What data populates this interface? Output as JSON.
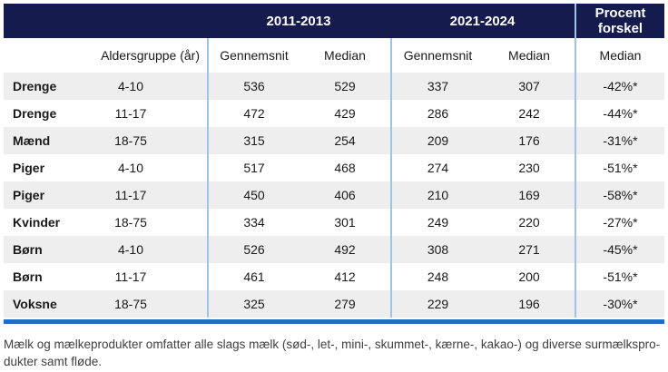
{
  "colors": {
    "navy": "#161b4e",
    "stripe": "#eeeeee",
    "separator": "#9dc3e6",
    "bottom_line": "#1e6fc0",
    "body_text": "#1a1a1a",
    "footnote_text": "#404040"
  },
  "table": {
    "group_headers": {
      "period1": "2011-2013",
      "period2": "2021-2024",
      "diff_line1": "Procent",
      "diff_line2": "forskel"
    },
    "subheader": {
      "age": "Aldersgruppe (år)",
      "avg1": "Gennemsnit",
      "med1": "Median",
      "avg2": "Gennemsnit",
      "med2": "Median",
      "diff": "Median"
    },
    "rows": [
      {
        "group": "Drenge",
        "age": "4-10",
        "avg1": "536",
        "med1": "529",
        "avg2": "337",
        "med2": "307",
        "diff": "-42%*"
      },
      {
        "group": "Drenge",
        "age": "11-17",
        "avg1": "472",
        "med1": "429",
        "avg2": "286",
        "med2": "242",
        "diff": "-44%*"
      },
      {
        "group": "Mænd",
        "age": "18-75",
        "avg1": "315",
        "med1": "254",
        "avg2": "209",
        "med2": "176",
        "diff": "-31%*"
      },
      {
        "group": "Piger",
        "age": "4-10",
        "avg1": "517",
        "med1": "468",
        "avg2": "274",
        "med2": "230",
        "diff": "-51%*"
      },
      {
        "group": "Piger",
        "age": "11-17",
        "avg1": "450",
        "med1": "406",
        "avg2": "210",
        "med2": "169",
        "diff": "-58%*"
      },
      {
        "group": "Kvinder",
        "age": "18-75",
        "avg1": "334",
        "med1": "301",
        "avg2": "249",
        "med2": "220",
        "diff": "-27%*"
      },
      {
        "group": "Børn",
        "age": "4-10",
        "avg1": "526",
        "med1": "492",
        "avg2": "308",
        "med2": "271",
        "diff": "-45%*"
      },
      {
        "group": "Børn",
        "age": "11-17",
        "avg1": "461",
        "med1": "412",
        "avg2": "248",
        "med2": "200",
        "diff": "-51%*"
      },
      {
        "group": "Voksne",
        "age": "18-75",
        "avg1": "325",
        "med1": "279",
        "avg2": "229",
        "med2": "196",
        "diff": "-30%*"
      }
    ]
  },
  "footnote": {
    "line1": "Mælk og mælkeprodukter omfatter alle slags mælk (sød-, let-, mini-, skummet-, kærne-, kakao-) og diverse surmælkspro-",
    "line2": "dukter samt fløde."
  }
}
